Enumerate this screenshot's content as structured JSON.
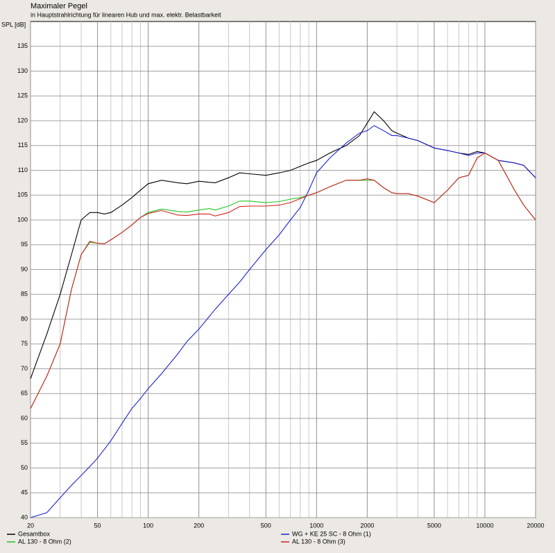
{
  "chart_data": {
    "type": "line",
    "title": "Maximaler Pegel",
    "subtitle": "in Hauptstrahlrichtung für linearen Hub und max. elektr. Belastbarkeit",
    "y_label": "SPL [dB]",
    "xscale": "log",
    "grid": true,
    "legend": "bottom",
    "xlim": [
      20,
      20000
    ],
    "xticks": [
      20,
      50,
      100,
      200,
      500,
      1000,
      2000,
      5000,
      10000,
      20000
    ],
    "xgrid_minor": [
      30,
      40,
      60,
      70,
      80,
      90,
      300,
      400,
      600,
      700,
      800,
      900,
      3000,
      4000,
      6000,
      7000,
      8000,
      9000
    ],
    "ylim": [
      40,
      140
    ],
    "yticks": [
      40,
      45,
      50,
      55,
      60,
      65,
      70,
      75,
      80,
      85,
      90,
      95,
      100,
      105,
      110,
      115,
      120,
      125,
      130,
      135
    ],
    "x": [
      20,
      25,
      30,
      35,
      40,
      45,
      50,
      55,
      60,
      70,
      80,
      90,
      100,
      120,
      150,
      170,
      200,
      230,
      250,
      300,
      350,
      400,
      500,
      600,
      700,
      800,
      900,
      1000,
      1200,
      1500,
      1800,
      2000,
      2200,
      2500,
      2800,
      3000,
      3500,
      4000,
      5000,
      6000,
      7000,
      8000,
      9000,
      10000,
      12000,
      15000,
      17000,
      20000
    ],
    "series": [
      {
        "name": "Gesamtbox",
        "color": "#000000",
        "values": [
          68,
          77,
          85,
          93,
          100,
          101.5,
          101.5,
          101.2,
          101.5,
          103,
          104.5,
          106,
          107.3,
          108,
          107.5,
          107.3,
          107.8,
          107.6,
          107.5,
          108.5,
          109.5,
          109.3,
          109,
          109.5,
          110,
          110.8,
          111.5,
          112,
          113.5,
          115,
          117,
          119.5,
          121.8,
          120,
          118,
          117.5,
          116.5,
          116,
          114.5,
          114,
          113.5,
          113.2,
          113.8,
          113.5,
          112,
          111.5,
          111,
          108.5
        ]
      },
      {
        "name": "WG + KE 25 SC - 8 Ohm (1)",
        "color": "#1f1fd0",
        "values": [
          40,
          41,
          44,
          46.5,
          48.5,
          50.3,
          52,
          53.8,
          55.5,
          59,
          62,
          64,
          66,
          69,
          73,
          75.5,
          78,
          80.5,
          82,
          85,
          87.5,
          90,
          94,
          97,
          100,
          102.5,
          106,
          109.5,
          112.5,
          115.5,
          117.5,
          118,
          119,
          118,
          117,
          117,
          116.5,
          116,
          114.5,
          114,
          113.5,
          113,
          113.5,
          113.5,
          112,
          111.5,
          111,
          108.5
        ]
      },
      {
        "name": "AL 130 - 8 Ohm (2)",
        "color": "#22c322",
        "values": [
          62,
          68.5,
          75,
          86,
          93,
          95.5,
          95.3,
          95.2,
          96,
          97.5,
          99,
          100.5,
          101.5,
          102.2,
          101.7,
          101.6,
          102,
          102.3,
          102,
          102.8,
          103.8,
          103.8,
          103.5,
          103.7,
          104.2,
          104.5,
          105,
          105.5,
          106.7,
          108,
          108,
          108,
          108,
          106.5,
          105.5,
          105.3,
          105.3,
          104.8,
          103.5,
          106,
          108.5,
          109,
          112.5,
          113.5,
          112,
          106,
          103,
          100
        ]
      },
      {
        "name": "AL 130 - 8 Ohm (3)",
        "color": "#d02020",
        "values": [
          62,
          68.5,
          75,
          86,
          93,
          95.7,
          95.3,
          95.2,
          96,
          97.5,
          99,
          100.5,
          101.3,
          101.9,
          101,
          100.9,
          101.2,
          101.2,
          100.8,
          101.5,
          102.7,
          102.8,
          102.8,
          103,
          103.5,
          104.3,
          105,
          105.5,
          106.7,
          108,
          108,
          108.3,
          108,
          106.5,
          105.5,
          105.3,
          105.3,
          104.8,
          103.5,
          106,
          108.5,
          109,
          112.5,
          113.5,
          112,
          106,
          103,
          100
        ]
      }
    ]
  }
}
